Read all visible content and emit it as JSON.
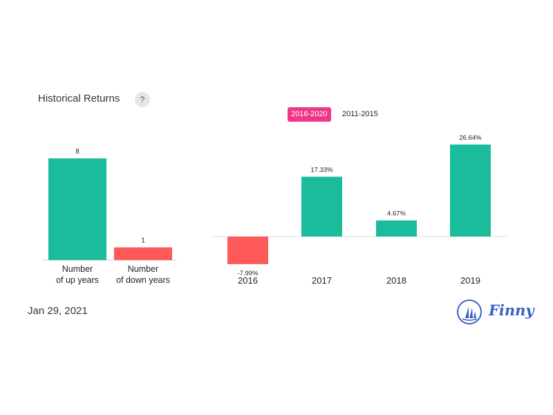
{
  "header": {
    "title": "Historical Returns",
    "help_label": "?"
  },
  "tabs": [
    {
      "label": "2016-2020",
      "active": true
    },
    {
      "label": "2011-2015",
      "active": false
    }
  ],
  "footer": {
    "date": "Jan 29, 2021",
    "brand": "Finny"
  },
  "colors": {
    "positive": "#1abc9c",
    "negative": "#ff5a5a",
    "accent": "#f0368a",
    "brand": "#3d5fc4"
  },
  "chart_data": [
    {
      "type": "bar",
      "categories": [
        [
          "Number",
          "of up years"
        ],
        [
          "Number",
          "of down years"
        ]
      ],
      "values": [
        8,
        1
      ],
      "value_labels": [
        "8",
        "1"
      ],
      "ylim": [
        0,
        8
      ]
    },
    {
      "type": "bar",
      "categories": [
        "2016",
        "2017",
        "2018",
        "2019"
      ],
      "values": [
        -7.99,
        17.33,
        4.67,
        26.64
      ],
      "value_labels": [
        "-7.99%",
        "17.33%",
        "4.67%",
        "26.64%"
      ],
      "unit": "%",
      "ylim": [
        -7.99,
        26.64
      ]
    }
  ]
}
